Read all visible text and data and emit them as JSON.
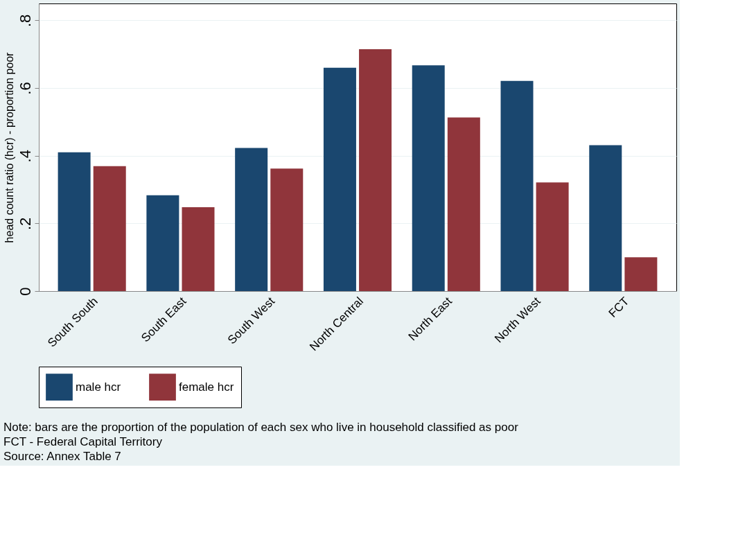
{
  "chart_data": {
    "type": "bar",
    "ylabel": "head count ratio (hcr) - proportion poor",
    "categories": [
      "South South",
      "South East",
      "South West",
      "North Central",
      "North East",
      "North West",
      "FCT"
    ],
    "series": [
      {
        "name": "male hcr",
        "color": "#1a476f",
        "values": [
          0.41,
          0.283,
          0.423,
          0.66,
          0.667,
          0.621,
          0.431
        ]
      },
      {
        "name": "female hcr",
        "color": "#90353b",
        "values": [
          0.369,
          0.248,
          0.362,
          0.715,
          0.513,
          0.321,
          0.1
        ]
      }
    ],
    "ylim": [
      0,
      0.85
    ],
    "yticks": [
      {
        "value": 0,
        "label": "0"
      },
      {
        "value": 0.2,
        "label": ".2"
      },
      {
        "value": 0.4,
        "label": ".4"
      },
      {
        "value": 0.6,
        "label": ".6"
      },
      {
        "value": 0.8,
        "label": ".8"
      }
    ],
    "grid": "y",
    "legend": "bottom",
    "annotations": [
      "Note: bars are the proportion of the population of each sex who live in household classified as poor",
      "FCT - Federal Capital Territory",
      "Source: Annex Table 7"
    ]
  }
}
